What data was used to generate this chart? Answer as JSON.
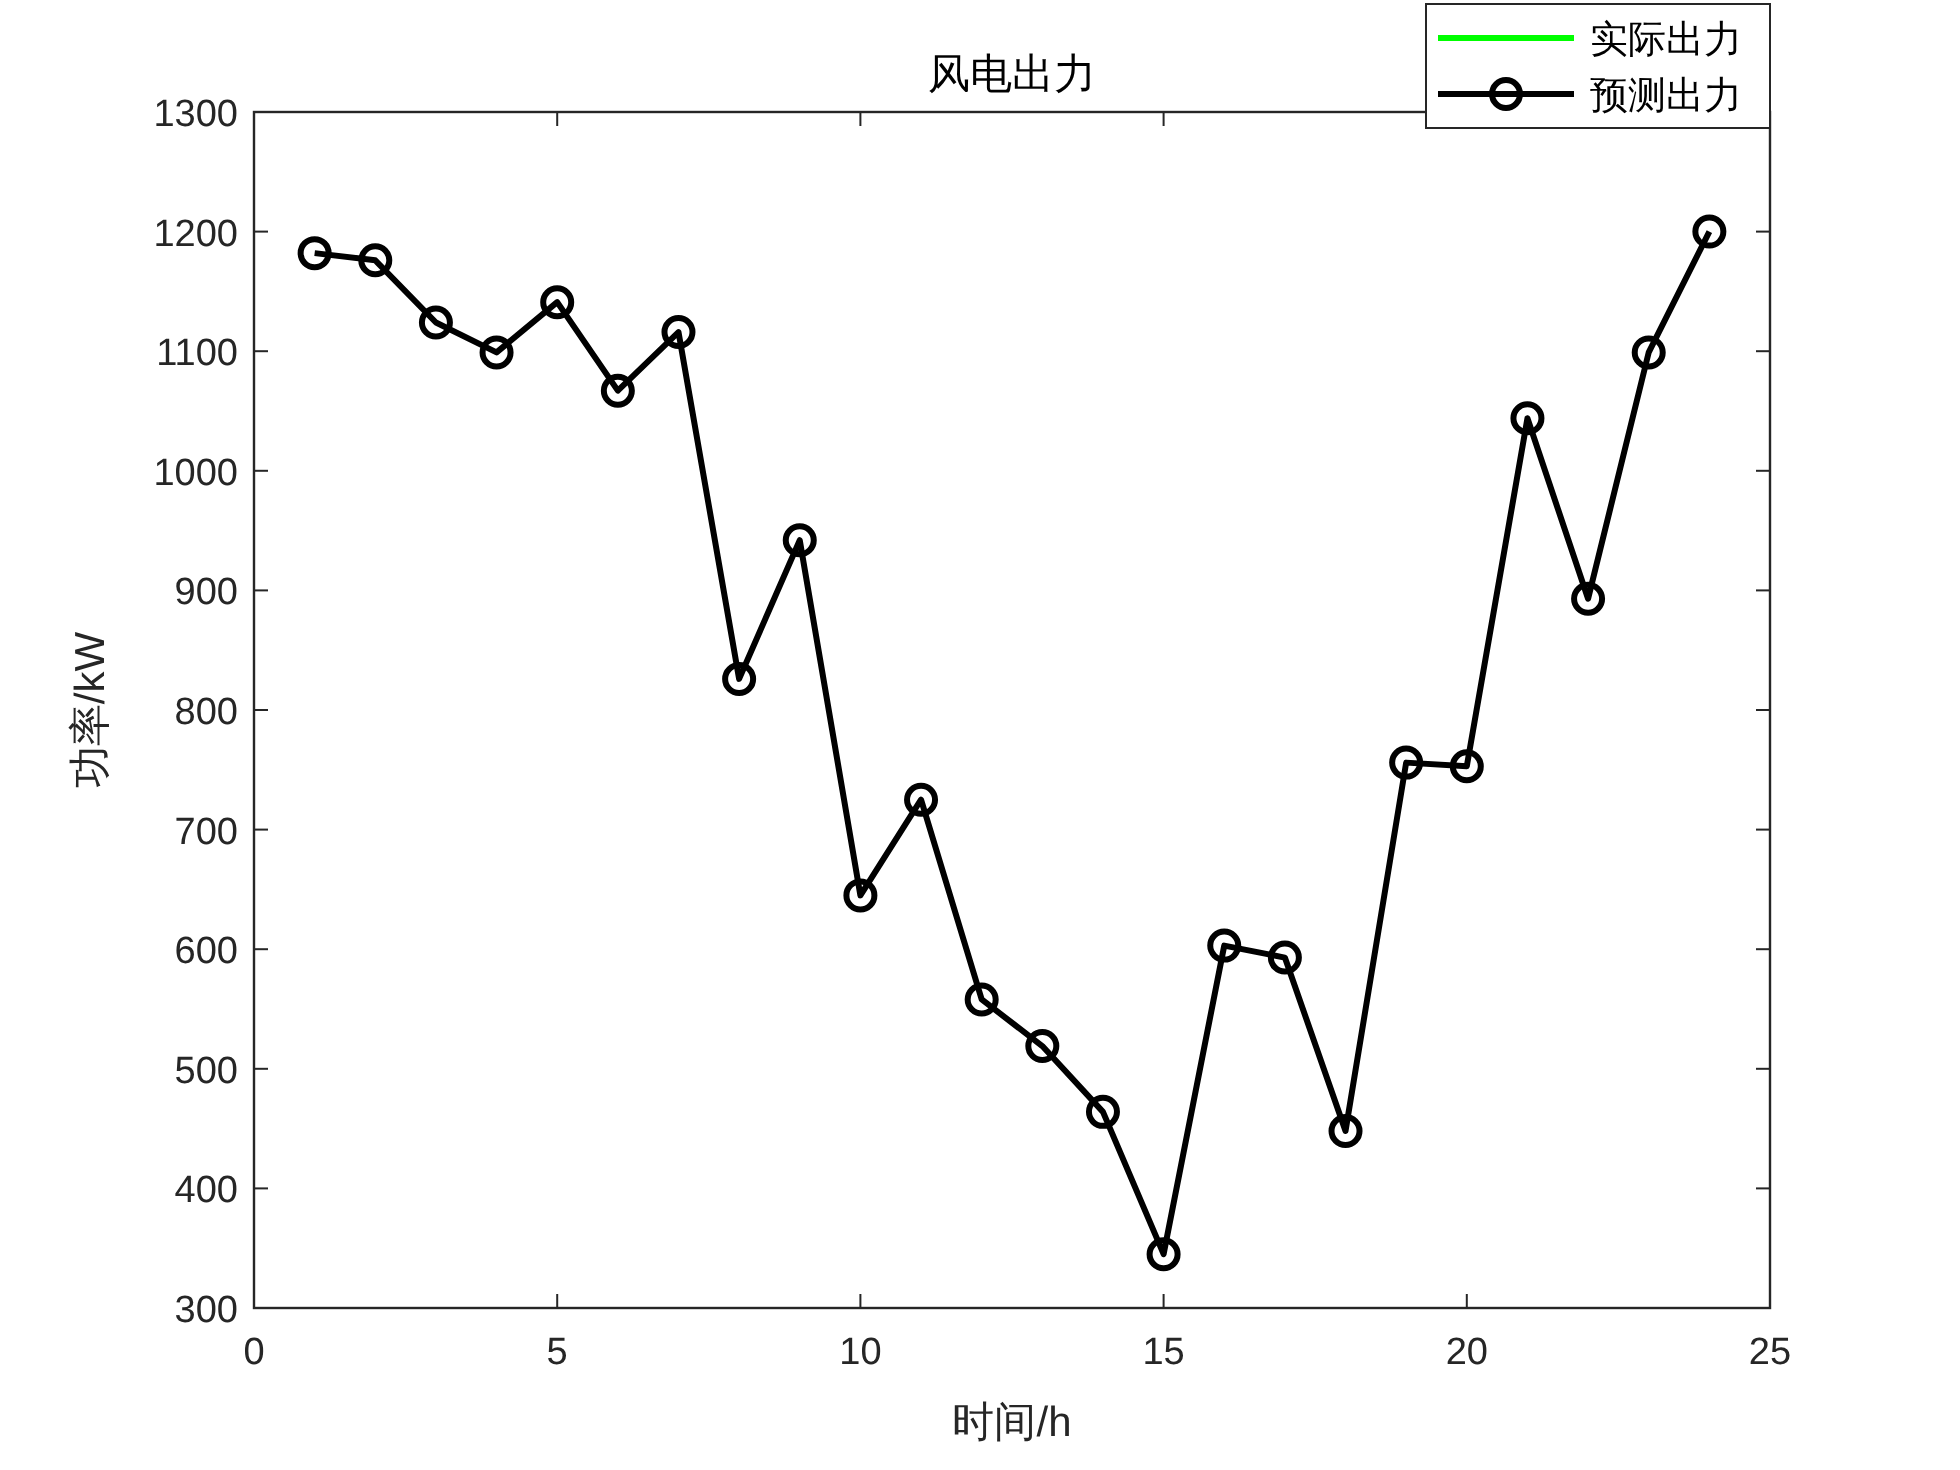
{
  "chart_data": {
    "type": "line",
    "title": "风电出力",
    "xlabel": "时间/h",
    "ylabel": "功率/kW",
    "x": [
      1,
      2,
      3,
      4,
      5,
      6,
      7,
      8,
      9,
      10,
      11,
      12,
      13,
      14,
      15,
      16,
      17,
      18,
      19,
      20,
      21,
      22,
      23,
      24
    ],
    "series": [
      {
        "name": "实际出力",
        "color": "#00ff00",
        "marker": "none",
        "values": [
          null,
          null,
          null,
          null,
          null,
          null,
          null,
          null,
          null,
          null,
          null,
          null,
          null,
          null,
          null,
          null,
          null,
          null,
          null,
          null,
          null,
          null,
          null,
          null
        ]
      },
      {
        "name": "预测出力",
        "color": "#000000",
        "marker": "circle",
        "values": [
          1182,
          1176,
          1124,
          1099,
          1141,
          1067,
          1116,
          826,
          942,
          645,
          725,
          558,
          519,
          464,
          345,
          603,
          593,
          448,
          756,
          753,
          1044,
          893,
          1099,
          1200
        ]
      }
    ],
    "xlim": [
      0,
      25
    ],
    "xticks": [
      0,
      5,
      10,
      15,
      20,
      25
    ],
    "ylim": [
      300,
      1300
    ],
    "yticks": [
      300,
      400,
      500,
      600,
      700,
      800,
      900,
      1000,
      1100,
      1200,
      1300
    ],
    "grid": false,
    "legend": "top right",
    "line_style": "solid"
  }
}
